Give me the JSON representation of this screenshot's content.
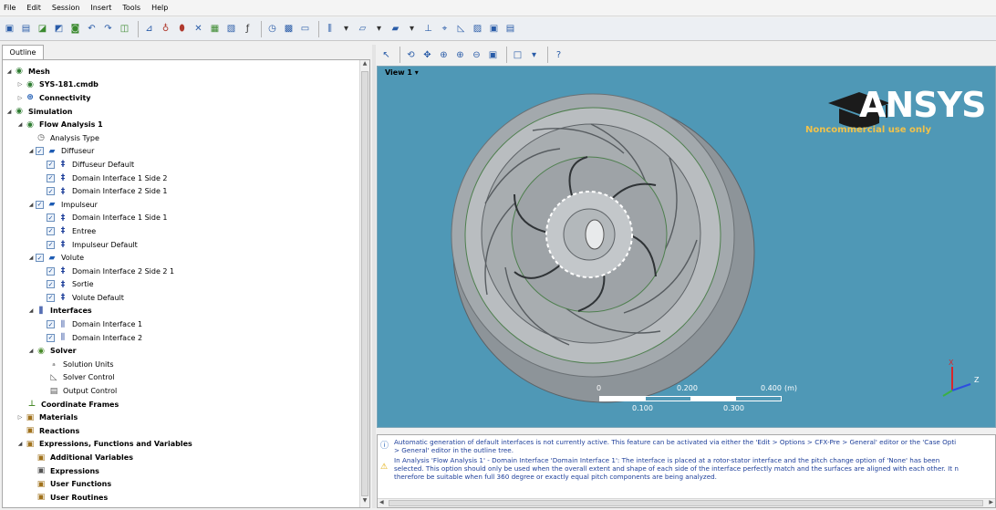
{
  "menu": [
    "File",
    "Edit",
    "Session",
    "Insert",
    "Tools",
    "Help"
  ],
  "outline_tab": "Outline",
  "view": {
    "label": "View 1 ▾",
    "logo_text": "ANSYS",
    "noncommercial": "Noncommercial use only",
    "scale_top": [
      "0",
      "0.200",
      "0.400",
      "(m)"
    ],
    "scale_bottom": [
      "0.100",
      "0.300"
    ]
  },
  "tree": [
    {
      "label": "Mesh",
      "bold": true
    },
    {
      "label": "SYS-181.cmdb",
      "bold": true
    },
    {
      "label": "Connectivity",
      "bold": true
    },
    {
      "label": "Simulation",
      "bold": true
    },
    {
      "label": "Flow Analysis 1",
      "bold": true
    },
    {
      "label": "Analysis Type",
      "bold": false
    },
    {
      "label": "Diffuseur",
      "bold": false
    },
    {
      "label": "Diffuseur Default",
      "bold": false
    },
    {
      "label": "Domain Interface 1 Side 2",
      "bold": false
    },
    {
      "label": "Domain Interface 2 Side 1",
      "bold": false
    },
    {
      "label": "Impulseur",
      "bold": false
    },
    {
      "label": "Domain Interface 1 Side 1",
      "bold": false
    },
    {
      "label": "Entree",
      "bold": false
    },
    {
      "label": "Impulseur Default",
      "bold": false
    },
    {
      "label": "Volute",
      "bold": false
    },
    {
      "label": "Domain Interface 2 Side 2 1",
      "bold": false
    },
    {
      "label": "Sortie",
      "bold": false
    },
    {
      "label": "Volute Default",
      "bold": false
    },
    {
      "label": "Interfaces",
      "bold": true
    },
    {
      "label": "Domain Interface 1",
      "bold": false
    },
    {
      "label": "Domain Interface 2",
      "bold": false
    },
    {
      "label": "Solver",
      "bold": true
    },
    {
      "label": "Solution Units",
      "bold": false
    },
    {
      "label": "Solver Control",
      "bold": false
    },
    {
      "label": "Output Control",
      "bold": false
    },
    {
      "label": "Coordinate Frames",
      "bold": true
    },
    {
      "label": "Materials",
      "bold": true
    },
    {
      "label": "Reactions",
      "bold": true
    },
    {
      "label": "Expressions, Functions and Variables",
      "bold": true
    },
    {
      "label": "Additional Variables",
      "bold": true
    },
    {
      "label": "Expressions",
      "bold": true
    },
    {
      "label": "User Functions",
      "bold": true
    },
    {
      "label": "User Routines",
      "bold": true
    }
  ],
  "messages": {
    "line1": "Automatic generation of default interfaces is not currently active. This feature can be activated via either the 'Edit > Options > CFX-Pre > General' editor or the 'Case Opti",
    "line2": "> General' editor in the outline tree.",
    "line3": "In Analysis 'Flow Analysis 1' - Domain Interface 'Domain Interface 1': The interface is placed at a rotor-stator interface and the pitch change option of 'None' has been",
    "line4": "selected. This option should only be used when the overall extent and shape of each side of the interface perfectly match and the surfaces are aligned with each other. It n",
    "line5": "therefore be suitable when full 360 degree or exactly equal pitch components are being analyzed."
  },
  "axis_labels": {
    "x": "Z",
    "y": "X"
  }
}
